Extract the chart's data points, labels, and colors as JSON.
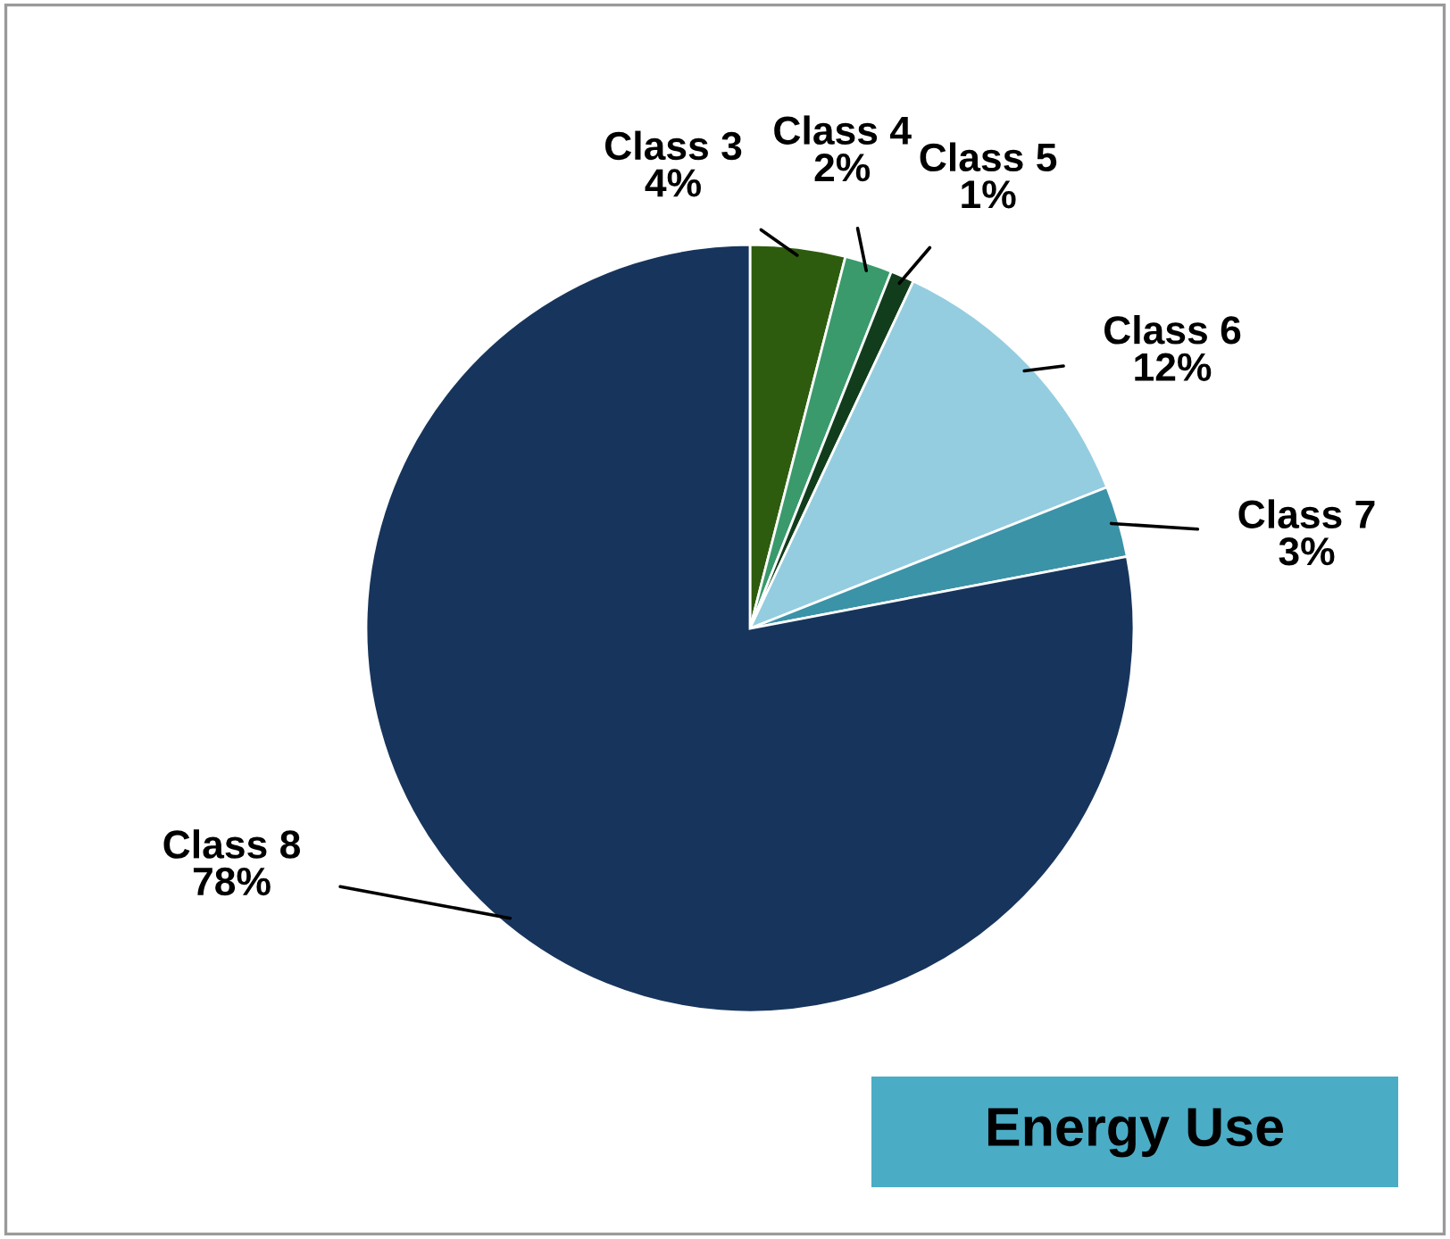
{
  "chart_data": {
    "type": "pie",
    "title": "Energy Use",
    "categories": [
      "Class 3",
      "Class 4",
      "Class 5",
      "Class 6",
      "Class 7",
      "Class 8"
    ],
    "values": [
      4,
      2,
      1,
      12,
      3,
      78
    ],
    "value_labels": [
      "4%",
      "2%",
      "1%",
      "12%",
      "3%",
      "78%"
    ],
    "colors": [
      "#2e5c0e",
      "#3a9a6c",
      "#123d1c",
      "#94cde0",
      "#3b93a8",
      "#17355c"
    ],
    "legend": false
  }
}
